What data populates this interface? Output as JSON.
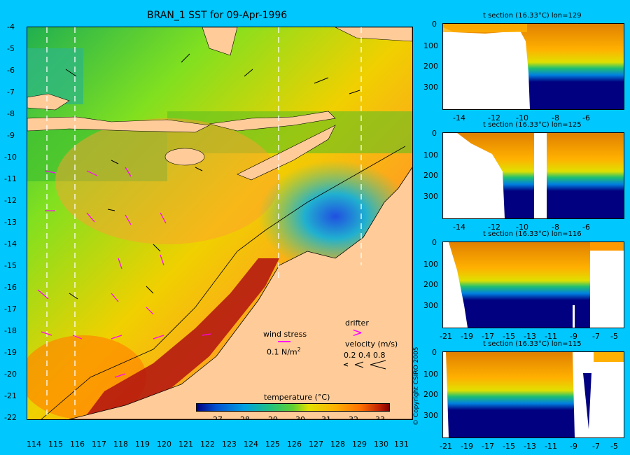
{
  "main_title": "BRAN_1 SST for 09-Apr-1996",
  "map": {
    "lat_ticks": [
      "-4",
      "-5",
      "-6",
      "-7",
      "-8",
      "-9",
      "-10",
      "-11",
      "-12",
      "-13",
      "-14",
      "-15",
      "-16",
      "-17",
      "-18",
      "-19",
      "-20",
      "-21",
      "-22"
    ],
    "lon_ticks": [
      "114",
      "115",
      "116",
      "117",
      "118",
      "119",
      "120",
      "121",
      "122",
      "123",
      "124",
      "125",
      "126",
      "127",
      "128",
      "129",
      "130",
      "131"
    ]
  },
  "legend": {
    "wind_stress_label": "wind stress",
    "wind_stress_value": "0.1 N/m",
    "wind_stress_sup": "2",
    "drifter_label": "drifter",
    "velocity_label": "velocity (m/s)",
    "velocity_values": "0.2 0.4 0.8",
    "colorbar_title": "temperature (°C)",
    "colorbar_ticks": [
      "27",
      "28",
      "29",
      "30",
      "31",
      "32",
      "33"
    ],
    "colors": {
      "cold": "#000080",
      "mid": "#22c022",
      "warm": "#ff9900",
      "hot": "#900000",
      "land": "#ffcc99",
      "arrow": "#ff00ff"
    }
  },
  "sections": [
    {
      "title": "t section (16.33°C) lon=129",
      "yticks": [
        "0",
        "100",
        "200",
        "300"
      ],
      "xticks": [
        "-14",
        "-12",
        "-10",
        "-8",
        "-6"
      ]
    },
    {
      "title": "t section (16.33°C) lon=125",
      "yticks": [
        "0",
        "100",
        "200",
        "300"
      ],
      "xticks": [
        "-14",
        "-12",
        "-10",
        "-8",
        "-6"
      ]
    },
    {
      "title": "t section (16.33°C) lon=116",
      "yticks": [
        "0",
        "100",
        "200",
        "300"
      ],
      "xticks": [
        "-21",
        "-19",
        "-17",
        "-15",
        "-13",
        "-11",
        "-9",
        "-7",
        "-5"
      ]
    },
    {
      "title": "t section (16.33°C) lon=115",
      "yticks": [
        "0",
        "100",
        "200",
        "300"
      ],
      "xticks": [
        "-21",
        "-19",
        "-17",
        "-15",
        "-13",
        "-11",
        "-9",
        "-7",
        "-5"
      ]
    }
  ],
  "copyright": "© Copyright CSIRO 2005"
}
